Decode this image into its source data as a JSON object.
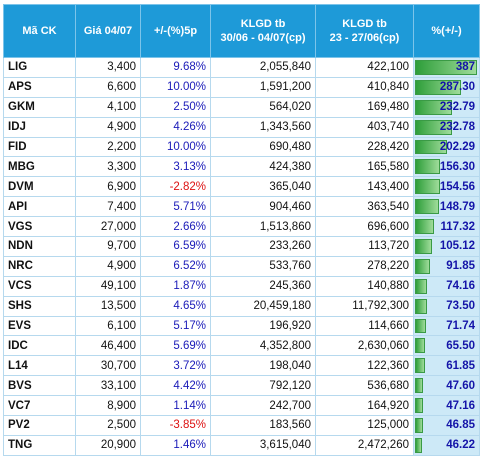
{
  "table": {
    "header": [
      "Mã CK",
      "Giá 04/07",
      "+/-(%)5p",
      "KLGD tb\n30/06 - 04/07(cp)",
      "KLGD tb\n23 - 27/06(cp)",
      "%(+/-)"
    ],
    "rows": [
      [
        "LIG",
        "3,400",
        "9.68%",
        "2,055,840",
        "422,100",
        "387"
      ],
      [
        "APS",
        "6,600",
        "10.00%",
        "1,591,200",
        "410,840",
        "287.30"
      ],
      [
        "GKM",
        "4,100",
        "2.50%",
        "564,020",
        "169,480",
        "232.79"
      ],
      [
        "IDJ",
        "4,900",
        "4.26%",
        "1,343,560",
        "403,740",
        "232.78"
      ],
      [
        "FID",
        "2,200",
        "10.00%",
        "690,480",
        "228,420",
        "202.29"
      ],
      [
        "MBG",
        "3,300",
        "3.13%",
        "424,380",
        "165,580",
        "156.30"
      ],
      [
        "DVM",
        "6,900",
        "-2.82%",
        "365,040",
        "143,400",
        "154.56"
      ],
      [
        "API",
        "7,400",
        "5.71%",
        "904,460",
        "363,540",
        "148.79"
      ],
      [
        "VGS",
        "27,000",
        "2.66%",
        "1,513,860",
        "696,600",
        "117.32"
      ],
      [
        "NDN",
        "9,700",
        "6.59%",
        "233,260",
        "113,720",
        "105.12"
      ],
      [
        "NRC",
        "4,900",
        "6.52%",
        "533,760",
        "278,220",
        "91.85"
      ],
      [
        "VCS",
        "49,100",
        "1.87%",
        "245,360",
        "140,880",
        "74.16"
      ],
      [
        "SHS",
        "13,500",
        "4.65%",
        "20,459,180",
        "11,792,300",
        "73.50"
      ],
      [
        "EVS",
        "6,100",
        "5.17%",
        "196,920",
        "114,660",
        "71.74"
      ],
      [
        "IDC",
        "46,400",
        "5.69%",
        "4,352,800",
        "2,630,060",
        "65.50"
      ],
      [
        "L14",
        "30,700",
        "3.72%",
        "198,040",
        "122,360",
        "61.85"
      ],
      [
        "BVS",
        "33,100",
        "4.42%",
        "792,120",
        "536,680",
        "47.60"
      ],
      [
        "VC7",
        "8,900",
        "1.14%",
        "242,700",
        "164,920",
        "47.16"
      ],
      [
        "PV2",
        "2,500",
        "-3.85%",
        "183,560",
        "125,000",
        "46.85"
      ],
      [
        "TNG",
        "20,900",
        "1.46%",
        "3,615,040",
        "2,472,260",
        "46.22"
      ]
    ]
  }
}
